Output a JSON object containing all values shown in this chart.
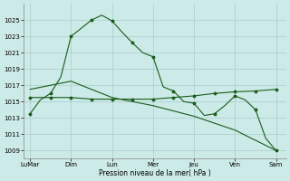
{
  "xlabel": "Pression niveau de la mer( hPa )",
  "bg_color": "#cceae7",
  "grid_color": "#aacccc",
  "line_color": "#1a5c1a",
  "ylim": [
    1008,
    1027
  ],
  "yticks": [
    1009,
    1011,
    1013,
    1015,
    1017,
    1019,
    1021,
    1023,
    1025
  ],
  "x_labels": [
    "LuMar",
    "Dim",
    "Lun",
    "Mer",
    "Jeu",
    "Ven",
    "Sam"
  ],
  "x_positions": [
    0,
    2,
    4,
    6,
    8,
    10,
    12
  ],
  "line1_x": [
    0,
    0.5,
    1,
    1.5,
    2,
    2.5,
    3,
    3.5,
    4,
    4.5,
    5,
    5.5,
    6,
    6.5,
    7,
    7.5,
    8,
    8.5,
    9,
    9.5,
    10,
    10.5,
    11,
    11.5,
    12
  ],
  "line1_y": [
    1013.5,
    1015.2,
    1016.0,
    1018.0,
    1023.0,
    1024.0,
    1025.0,
    1025.6,
    1024.9,
    1023.5,
    1022.2,
    1021.0,
    1020.5,
    1016.8,
    1016.3,
    1015.0,
    1014.8,
    1013.3,
    1013.5,
    1014.5,
    1015.7,
    1015.2,
    1014.0,
    1010.5,
    1009.0
  ],
  "line2_x": [
    0,
    1,
    2,
    3,
    4,
    5,
    6,
    7,
    8,
    9,
    10,
    11,
    12
  ],
  "line2_y": [
    1015.5,
    1015.5,
    1015.5,
    1015.3,
    1015.3,
    1015.3,
    1015.3,
    1015.5,
    1015.7,
    1016.0,
    1016.2,
    1016.3,
    1016.5
  ],
  "line3_x": [
    0,
    2,
    4,
    6,
    8,
    10,
    12
  ],
  "line3_y": [
    1016.5,
    1017.5,
    1015.5,
    1014.5,
    1013.2,
    1011.5,
    1009.0
  ]
}
